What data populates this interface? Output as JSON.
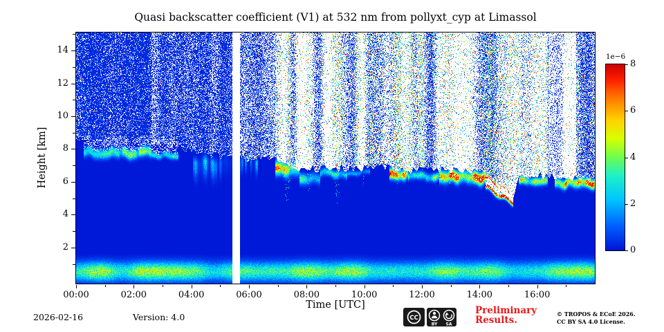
{
  "chart_data": {
    "type": "heatmap",
    "title": "Quasi backscatter coefficient (V1) at 532 nm from pollyxt_cyp at Limassol",
    "xlabel": "Time [UTC]",
    "ylabel": "Height [km]",
    "x_range_hours": [
      0,
      18
    ],
    "y_range_km": [
      -0.2,
      15.1
    ],
    "seed": 1337,
    "axes": {
      "x_ticks": [
        {
          "h": 0,
          "label": "00:00"
        },
        {
          "h": 2,
          "label": "02:00"
        },
        {
          "h": 4,
          "label": "04:00"
        },
        {
          "h": 6,
          "label": "06:00"
        },
        {
          "h": 8,
          "label": "08:00"
        },
        {
          "h": 10,
          "label": "10:00"
        },
        {
          "h": 12,
          "label": "12:00"
        },
        {
          "h": 14,
          "label": "14:00"
        },
        {
          "h": 16,
          "label": "16:00"
        }
      ],
      "x_minor": [
        1,
        3,
        5,
        7,
        9,
        11,
        13,
        15,
        17
      ],
      "y_ticks": [
        2,
        4,
        6,
        8,
        10,
        12,
        14
      ],
      "y_minor": [
        1,
        3,
        5,
        7,
        9,
        11,
        13,
        15
      ],
      "grid": false
    },
    "colorbar": {
      "min": 0,
      "max": 8,
      "ticks": [
        0,
        2,
        4,
        6,
        8
      ],
      "scale_label": "1e−6",
      "position": "right"
    },
    "colormap_stops": [
      [
        0,
        [
          0,
          22,
          214
        ]
      ],
      [
        0.13,
        [
          0,
          96,
          255
        ]
      ],
      [
        0.27,
        [
          0,
          196,
          255
        ]
      ],
      [
        0.4,
        [
          30,
          240,
          200
        ]
      ],
      [
        0.5,
        [
          110,
          252,
          80
        ]
      ],
      [
        0.6,
        [
          215,
          255,
          0
        ]
      ],
      [
        0.7,
        [
          255,
          210,
          0
        ]
      ],
      [
        0.82,
        [
          255,
          120,
          0
        ]
      ],
      [
        0.92,
        [
          252,
          30,
          0
        ]
      ],
      [
        1,
        [
          205,
          0,
          0
        ]
      ]
    ],
    "features": {
      "background_value": 0.04,
      "data_gap_hours": [
        5.42,
        5.67
      ],
      "surface_layer": {
        "top_km": 1.15,
        "peak_km": 0.55,
        "peak_value": 3.4,
        "width_km": 0.55
      },
      "clouds": [
        {
          "t0": 0.25,
          "t1": 2.6,
          "c": 7.8,
          "w": 0.28,
          "v": 3.4,
          "cap": 1
        },
        {
          "t0": 2.6,
          "t1": 3.55,
          "c": 7.7,
          "w": 0.18,
          "v": 2.4,
          "cap": 1
        },
        {
          "t0": 4.05,
          "t1": 5.42,
          "c": 7.15,
          "w": 0.34,
          "v": 2.0,
          "stripe": 1
        },
        {
          "t0": 5.67,
          "t1": 6.3,
          "c": 7.15,
          "w": 0.24,
          "v": 1.7,
          "stripe": 1
        },
        {
          "t0": 6.9,
          "t1": 7.75,
          "c": 6.85,
          "w": 0.38,
          "v": 4.8
        },
        {
          "t0": 7.75,
          "t1": 8.45,
          "c": 6.25,
          "w": 0.3,
          "v": 3.2
        },
        {
          "t0": 8.45,
          "t1": 9.4,
          "c": 6.5,
          "w": 0.22,
          "v": 2.6
        },
        {
          "t0": 9.4,
          "t1": 10.2,
          "c": 6.6,
          "w": 0.15,
          "v": 1.5
        },
        {
          "t0": 10.85,
          "t1": 11.5,
          "c": 6.55,
          "w": 0.28,
          "v": 6.2
        },
        {
          "t0": 11.5,
          "t1": 12.6,
          "c": 6.35,
          "w": 0.22,
          "v": 3.4
        },
        {
          "t0": 12.6,
          "t1": 14.2,
          "c": 6.3,
          "w": 0.33,
          "v": 6.8
        },
        {
          "t0": 14.2,
          "t1": 15.15,
          "c": 6.05,
          "c2": 4.95,
          "w": 0.33,
          "v": 7.2,
          "hollow": 1
        },
        {
          "t0": 15.35,
          "t1": 16.35,
          "c": 6.15,
          "w": 0.22,
          "v": 4.2
        },
        {
          "t0": 16.6,
          "t1": 18.01,
          "c": 5.95,
          "w": 0.26,
          "v": 5.8
        }
      ],
      "noise_floor": [
        [
          0,
          8.45
        ],
        [
          2.6,
          8.45
        ],
        [
          3.6,
          8.15
        ],
        [
          4.05,
          7.9
        ],
        [
          5,
          7.6
        ],
        [
          6,
          7.45
        ],
        [
          6.9,
          7.4
        ],
        [
          7.75,
          6.7
        ],
        [
          8.45,
          6.85
        ],
        [
          9.4,
          6.85
        ],
        [
          10.85,
          6.9
        ],
        [
          11.5,
          6.75
        ],
        [
          12.6,
          6.75
        ],
        [
          13.3,
          6.8
        ],
        [
          14.2,
          6.6
        ],
        [
          14.7,
          5.4
        ],
        [
          15.15,
          5.15
        ],
        [
          15.35,
          6.4
        ],
        [
          16.35,
          6.35
        ],
        [
          16.6,
          6.25
        ],
        [
          18,
          6.15
        ]
      ],
      "noise_bands": [
        {
          "t0": 0,
          "t1": 2.6,
          "white": 0.13,
          "color": 0.02
        },
        {
          "t0": 2.6,
          "t1": 4.5,
          "white": 0.3,
          "color": 0.03
        },
        {
          "t0": 4.5,
          "t1": 5.42,
          "white": 0.28,
          "color": 0.03
        },
        {
          "t0": 5.67,
          "t1": 6.9,
          "white": 0.5,
          "color": 0.06
        },
        {
          "t0": 6.9,
          "t1": 10.85,
          "white": 0.62,
          "color": 0.13
        },
        {
          "t0": 10.85,
          "t1": 14.2,
          "white": 0.6,
          "color": 0.15
        },
        {
          "t0": 14.2,
          "t1": 16.4,
          "white": 0.55,
          "color": 0.11
        },
        {
          "t0": 16.4,
          "t1": 17.35,
          "white": 0.8,
          "color": 0.05
        },
        {
          "t0": 17.35,
          "t1": 18,
          "white": 0.38,
          "color": 0.1
        }
      ],
      "noise_streaks": [
        {
          "t": 7.3,
          "w": 0.12,
          "depth": 2.6
        },
        {
          "t": 8.05,
          "w": 0.09,
          "depth": 1.4
        },
        {
          "t": 9.05,
          "w": 0.1,
          "depth": 2.2
        },
        {
          "t": 9.95,
          "w": 0.07,
          "depth": 1.0
        },
        {
          "t": 11.15,
          "w": 0.1,
          "depth": 1.0
        },
        {
          "t": 12.0,
          "w": 0.08,
          "depth": 0.8
        },
        {
          "t": 12.95,
          "w": 0.09,
          "depth": 0.8
        },
        {
          "t": 13.6,
          "w": 0.1,
          "depth": 0.7
        },
        {
          "t": 14.35,
          "w": 0.08,
          "depth": 0.5
        },
        {
          "t": 15.05,
          "w": 0.06,
          "depth": 0.5
        },
        {
          "t": 16.15,
          "w": 0.09,
          "depth": 0.7
        }
      ]
    }
  },
  "footer": {
    "date": "2026-02-16",
    "version": "Version: 4.0",
    "preliminary_line1": "Preliminary",
    "preliminary_line2": "Results.",
    "copyright_line1": "© TROPOS & ECoE 2026.",
    "copyright_line2": "CC BY SA 4.0 License.",
    "badge": {
      "cc": "CC",
      "by": "BY",
      "sa": "SA"
    }
  },
  "colors": {
    "background": "#ffffff",
    "axis": "#000000",
    "preliminary_red": "#e8191c",
    "badge_black": "#1a1a1a"
  }
}
